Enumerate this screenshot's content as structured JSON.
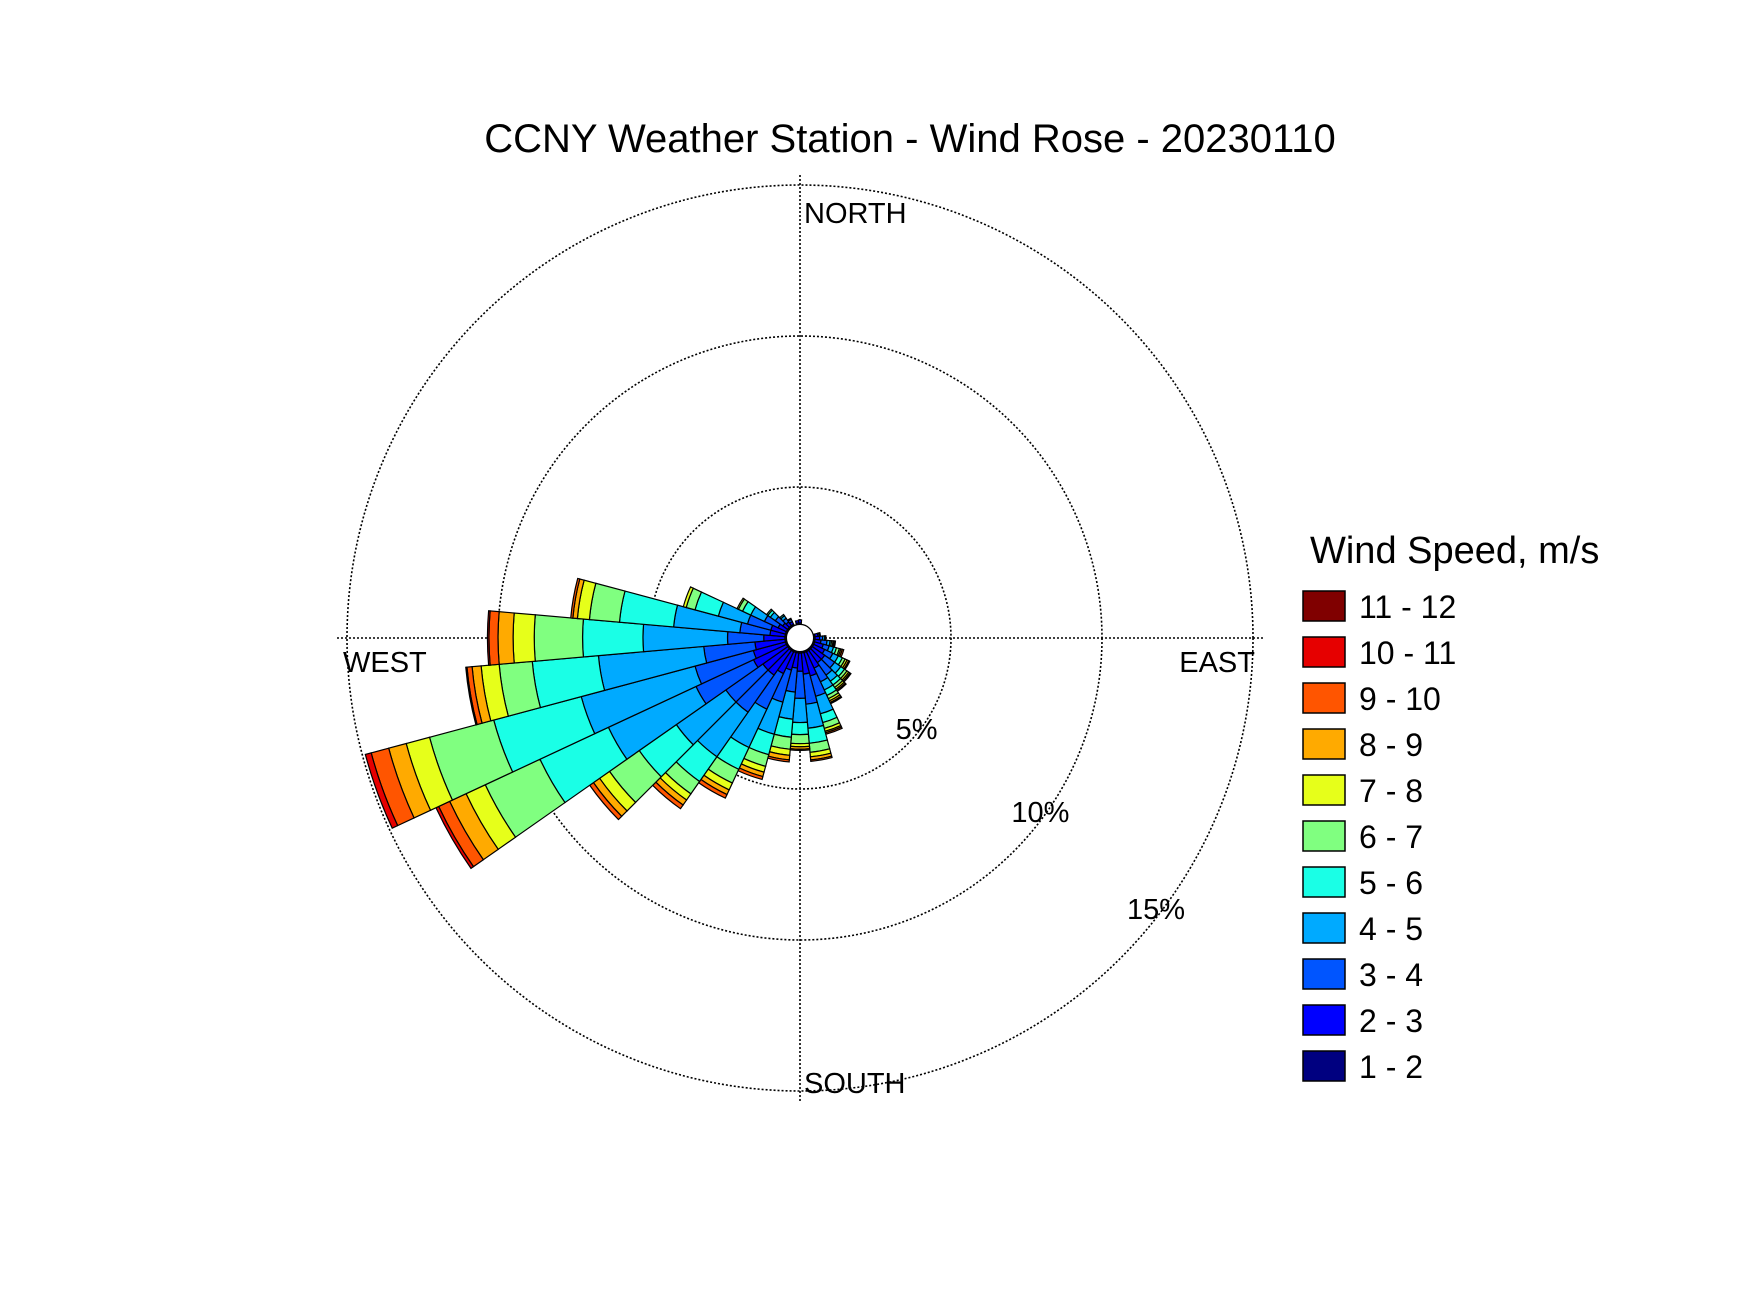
{
  "chart_data": {
    "type": "wind-rose",
    "title": "CCNY Weather Station - Wind Rose - 20230110",
    "directions": {
      "north": "NORTH",
      "east": "EAST",
      "south": "SOUTH",
      "west": "WEST"
    },
    "rings": [
      {
        "value": 5,
        "label": "5%"
      },
      {
        "value": 10,
        "label": "10%"
      },
      {
        "value": 15,
        "label": "15%"
      }
    ],
    "legend": {
      "title": "Wind Speed, m/s",
      "bins": [
        {
          "label": "11 - 12",
          "color": "#800000"
        },
        {
          "label": "10 - 11",
          "color": "#e60000"
        },
        {
          "label": "9 - 10",
          "color": "#ff5500"
        },
        {
          "label": "8 - 9",
          "color": "#ffaa00"
        },
        {
          "label": "7 - 8",
          "color": "#e6ff1a"
        },
        {
          "label": "6 - 7",
          "color": "#80ff80"
        },
        {
          "label": "5 - 6",
          "color": "#1affe6"
        },
        {
          "label": "4 - 5",
          "color": "#00aaff"
        },
        {
          "label": "3 - 4",
          "color": "#0055ff"
        },
        {
          "label": "2 - 3",
          "color": "#0000ff"
        },
        {
          "label": "1 - 2",
          "color": "#000080"
        }
      ]
    },
    "sector_width_deg": 10,
    "sectors": [
      {
        "direction_deg": 100,
        "cumulative": [
          0.5,
          0.7,
          0.9,
          1.0,
          1.05,
          1.1,
          1.13,
          1.15,
          1.18
        ]
      },
      {
        "direction_deg": 110,
        "cumulative": [
          0.5,
          0.8,
          1.0,
          1.15,
          1.25,
          1.35,
          1.4,
          1.45,
          1.5
        ]
      },
      {
        "direction_deg": 120,
        "cumulative": [
          0.5,
          0.9,
          1.2,
          1.4,
          1.55,
          1.65,
          1.72,
          1.78,
          1.82
        ]
      },
      {
        "direction_deg": 130,
        "cumulative": [
          0.5,
          1.0,
          1.4,
          1.65,
          1.8,
          1.9,
          1.97,
          2.02,
          2.06
        ]
      },
      {
        "direction_deg": 140,
        "cumulative": [
          0.5,
          1.0,
          1.5,
          1.75,
          1.9,
          2.0,
          2.07,
          2.12,
          2.16
        ]
      },
      {
        "direction_deg": 150,
        "cumulative": [
          0.5,
          1.1,
          1.6,
          1.9,
          2.1,
          2.22,
          2.3,
          2.36,
          2.4
        ]
      },
      {
        "direction_deg": 160,
        "cumulative": [
          0.5,
          1.3,
          2.0,
          2.6,
          2.9,
          3.1,
          3.2,
          3.25,
          3.3
        ]
      },
      {
        "direction_deg": 170,
        "cumulative": [
          0.5,
          1.2,
          2.2,
          3.0,
          3.5,
          3.8,
          3.95,
          4.05,
          4.1
        ]
      },
      {
        "direction_deg": 180,
        "cumulative": [
          0.5,
          1.1,
          2.0,
          2.8,
          3.2,
          3.5,
          3.6,
          3.68,
          3.72
        ]
      },
      {
        "direction_deg": 190,
        "cumulative": [
          0.5,
          1.0,
          1.8,
          2.7,
          3.3,
          3.7,
          3.9,
          4.05,
          4.12
        ]
      },
      {
        "direction_deg": 200,
        "cumulative": [
          0.5,
          1.1,
          2.2,
          3.3,
          4.0,
          4.4,
          4.6,
          4.75,
          4.85
        ]
      },
      {
        "direction_deg": 210,
        "cumulative": [
          0.5,
          1.3,
          2.6,
          4.0,
          4.8,
          5.3,
          5.55,
          5.72,
          5.85
        ]
      },
      {
        "direction_deg": 220,
        "cumulative": [
          0.5,
          1.5,
          3.0,
          4.8,
          5.8,
          6.3,
          6.55,
          6.75,
          6.9
        ]
      },
      {
        "direction_deg": 230,
        "cumulative": [
          0.5,
          1.5,
          3.0,
          5.0,
          6.5,
          7.7,
          8.1,
          8.35,
          8.5
        ]
      },
      {
        "direction_deg": 240,
        "cumulative": [
          0.5,
          1.7,
          3.8,
          7.0,
          9.5,
          11.5,
          12.2,
          12.8,
          13.2,
          13.3
        ]
      },
      {
        "direction_deg": 250,
        "cumulative": [
          0.5,
          1.6,
          3.6,
          7.5,
          10.5,
          12.7,
          13.5,
          14.1,
          14.7,
          14.9
        ]
      },
      {
        "direction_deg": 260,
        "cumulative": [
          0.5,
          1.5,
          3.2,
          6.7,
          8.9,
          10.0,
          10.6,
          10.9,
          11.07,
          11.11
        ]
      },
      {
        "direction_deg": 270,
        "cumulative": [
          0.5,
          1.2,
          2.4,
          5.2,
          7.2,
          8.8,
          9.5,
          10.0,
          10.3,
          10.35
        ]
      },
      {
        "direction_deg": 280,
        "cumulative": [
          0.5,
          1.0,
          2.0,
          4.2,
          6.0,
          7.0,
          7.4,
          7.55,
          7.62
        ]
      },
      {
        "direction_deg": 290,
        "cumulative": [
          0.5,
          1.0,
          1.8,
          2.8,
          3.6,
          3.9,
          4.0
        ]
      },
      {
        "direction_deg": 300,
        "cumulative": [
          0.5,
          0.8,
          1.3,
          1.8,
          2.1,
          2.25,
          2.3
        ]
      },
      {
        "direction_deg": 310,
        "cumulative": [
          0.5,
          0.7,
          1.0,
          1.2,
          1.3,
          1.35
        ]
      },
      {
        "direction_deg": 320,
        "cumulative": [
          0.5,
          0.65,
          0.8,
          0.9,
          0.95
        ]
      },
      {
        "direction_deg": 330,
        "cumulative": [
          0.5,
          0.6,
          0.68,
          0.72
        ]
      },
      {
        "direction_deg": 350,
        "cumulative": [
          0.5,
          0.58
        ]
      },
      {
        "direction_deg": 360,
        "cumulative": [
          0.5,
          0.6
        ]
      },
      {
        "direction_deg": 80,
        "cumulative": [
          0.5,
          0.6,
          0.65,
          0.68
        ]
      },
      {
        "direction_deg": 90,
        "cumulative": [
          0.5,
          0.65,
          0.75,
          0.82,
          0.86
        ]
      }
    ]
  }
}
